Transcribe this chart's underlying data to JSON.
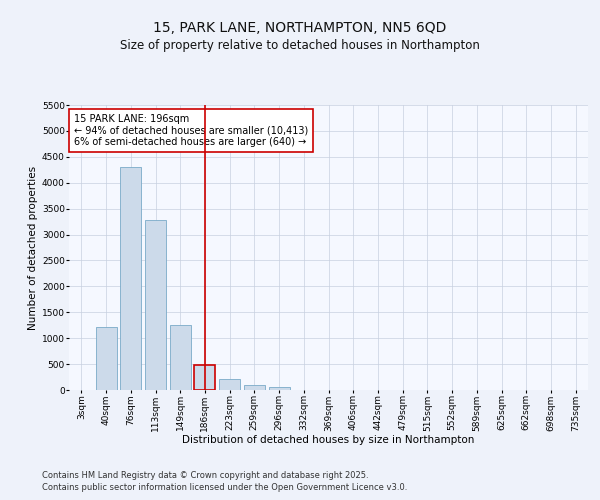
{
  "title_line1": "15, PARK LANE, NORTHAMPTON, NN5 6QD",
  "title_line2": "Size of property relative to detached houses in Northampton",
  "xlabel": "Distribution of detached houses by size in Northampton",
  "ylabel": "Number of detached properties",
  "categories": [
    "3sqm",
    "40sqm",
    "76sqm",
    "113sqm",
    "149sqm",
    "186sqm",
    "223sqm",
    "259sqm",
    "296sqm",
    "332sqm",
    "369sqm",
    "406sqm",
    "442sqm",
    "479sqm",
    "515sqm",
    "552sqm",
    "589sqm",
    "625sqm",
    "662sqm",
    "698sqm",
    "735sqm"
  ],
  "values": [
    0,
    1220,
    4300,
    3280,
    1250,
    490,
    210,
    100,
    55,
    0,
    0,
    0,
    0,
    0,
    0,
    0,
    0,
    0,
    0,
    0,
    0
  ],
  "bar_color": "#ccdaea",
  "bar_edge_color": "#7aaac8",
  "highlight_bar_index": 5,
  "highlight_bar_edge_color": "#cc0000",
  "vline_color": "#cc0000",
  "annotation_text": "15 PARK LANE: 196sqm\n← 94% of detached houses are smaller (10,413)\n6% of semi-detached houses are larger (640) →",
  "annotation_box_color": "#ffffff",
  "annotation_box_edge": "#cc0000",
  "ylim": [
    0,
    5500
  ],
  "yticks": [
    0,
    500,
    1000,
    1500,
    2000,
    2500,
    3000,
    3500,
    4000,
    4500,
    5000,
    5500
  ],
  "footer_line1": "Contains HM Land Registry data © Crown copyright and database right 2025.",
  "footer_line2": "Contains public sector information licensed under the Open Government Licence v3.0.",
  "bg_color": "#eef2fa",
  "plot_bg_color": "#f5f8ff",
  "grid_color": "#c8d0e0",
  "title_fontsize": 10,
  "subtitle_fontsize": 8.5,
  "axis_label_fontsize": 7.5,
  "tick_fontsize": 6.5,
  "annotation_fontsize": 7,
  "footer_fontsize": 6
}
